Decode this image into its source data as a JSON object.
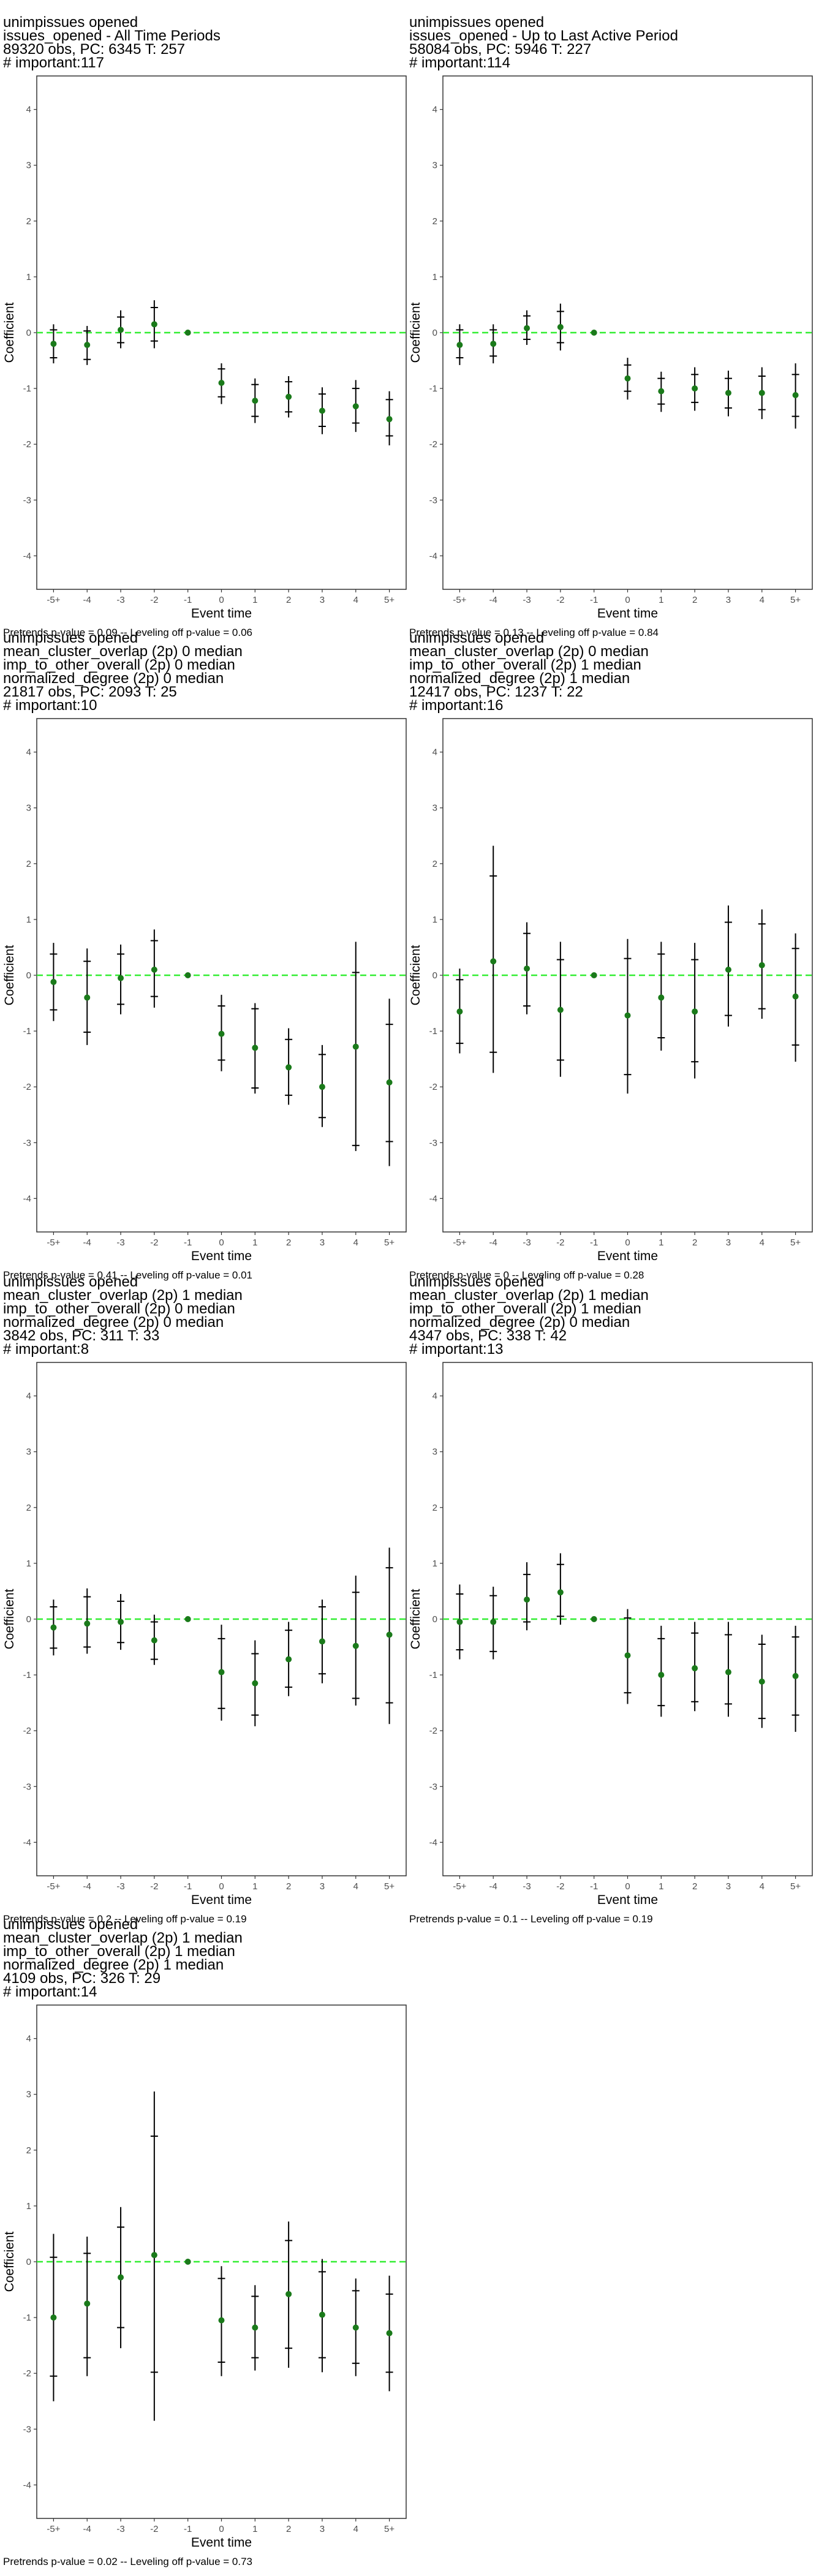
{
  "common": {
    "ylabel": "Coefficient",
    "xlabel": "Event time",
    "categories": [
      "-5+",
      "-4",
      "-3",
      "-2",
      "-1",
      "0",
      "1",
      "2",
      "3",
      "4",
      "5+"
    ],
    "y_ticks": [
      -4,
      -3,
      -2,
      -1,
      0,
      1,
      2,
      3,
      4
    ],
    "ylim": [
      -4.6,
      4.6
    ],
    "colors": {
      "point": "#1a7a1a",
      "zero_line": "#33ee33",
      "error_bar": "#000000",
      "frame": "#333333"
    }
  },
  "chart_data": [
    {
      "type": "scatter",
      "title_lines": [
        " unimpissues opened",
        "issues_opened - All Time Periods",
        "89320 obs, PC: 6345 T: 257",
        "# important:117"
      ],
      "footnote": "Pretrends p-value = 0.09 -- Leveling off p-value = 0.06",
      "series": [
        {
          "values": [
            -0.2,
            -0.22,
            0.05,
            0.15,
            0.0,
            -0.9,
            -1.22,
            -1.15,
            -1.4,
            -1.32,
            -1.55
          ],
          "ci95": [
            [
              -0.55,
              0.15
            ],
            [
              -0.58,
              0.12
            ],
            [
              -0.28,
              0.4
            ],
            [
              -0.28,
              0.58
            ],
            [
              0,
              0
            ],
            [
              -1.28,
              -0.55
            ],
            [
              -1.62,
              -0.82
            ],
            [
              -1.52,
              -0.78
            ],
            [
              -1.82,
              -0.98
            ],
            [
              -1.78,
              -0.85
            ],
            [
              -2.02,
              -1.05
            ]
          ],
          "ci90": [
            [
              -0.45,
              0.05
            ],
            [
              -0.48,
              0.03
            ],
            [
              -0.18,
              0.28
            ],
            [
              -0.15,
              0.45
            ],
            [
              0,
              0
            ],
            [
              -1.15,
              -0.65
            ],
            [
              -1.5,
              -0.93
            ],
            [
              -1.42,
              -0.88
            ],
            [
              -1.68,
              -1.1
            ],
            [
              -1.62,
              -1.0
            ],
            [
              -1.85,
              -1.2
            ]
          ]
        }
      ]
    },
    {
      "type": "scatter",
      "title_lines": [
        " unimpissues opened",
        "issues_opened - Up to Last Active Period",
        "58084 obs, PC: 5946 T: 227",
        "# important:114"
      ],
      "footnote": "Pretrends p-value = 0.13 -- Leveling off p-value = 0.84",
      "series": [
        {
          "values": [
            -0.22,
            -0.2,
            0.08,
            0.1,
            0.0,
            -0.82,
            -1.05,
            -1.0,
            -1.08,
            -1.08,
            -1.12
          ],
          "ci95": [
            [
              -0.58,
              0.15
            ],
            [
              -0.55,
              0.15
            ],
            [
              -0.22,
              0.4
            ],
            [
              -0.32,
              0.52
            ],
            [
              0,
              0
            ],
            [
              -1.2,
              -0.45
            ],
            [
              -1.42,
              -0.7
            ],
            [
              -1.4,
              -0.62
            ],
            [
              -1.5,
              -0.68
            ],
            [
              -1.55,
              -0.62
            ],
            [
              -1.72,
              -0.55
            ]
          ],
          "ci90": [
            [
              -0.45,
              0.05
            ],
            [
              -0.42,
              0.05
            ],
            [
              -0.12,
              0.3
            ],
            [
              -0.18,
              0.38
            ],
            [
              0,
              0
            ],
            [
              -1.05,
              -0.58
            ],
            [
              -1.28,
              -0.82
            ],
            [
              -1.25,
              -0.75
            ],
            [
              -1.35,
              -0.82
            ],
            [
              -1.38,
              -0.78
            ],
            [
              -1.5,
              -0.75
            ]
          ]
        }
      ]
    },
    {
      "type": "scatter",
      "title_lines": [
        " unimpissues opened",
        "mean_cluster_overlap (2p) 0 median",
        "imp_to_other_overall (2p) 0 median",
        "normalized_degree (2p) 0 median",
        "21817 obs, PC: 2093 T: 25",
        "# important:10"
      ],
      "footnote": "Pretrends p-value = 0.41 -- Leveling off p-value = 0.01",
      "series": [
        {
          "values": [
            -0.12,
            -0.4,
            -0.05,
            0.1,
            0.0,
            -1.05,
            -1.3,
            -1.65,
            -2.0,
            -1.28,
            -1.92
          ],
          "ci95": [
            [
              -0.82,
              0.58
            ],
            [
              -1.25,
              0.48
            ],
            [
              -0.7,
              0.55
            ],
            [
              -0.58,
              0.82
            ],
            [
              0,
              0
            ],
            [
              -1.72,
              -0.35
            ],
            [
              -2.12,
              -0.5
            ],
            [
              -2.32,
              -0.95
            ],
            [
              -2.72,
              -1.25
            ],
            [
              -3.15,
              0.6
            ],
            [
              -3.42,
              -0.42
            ]
          ],
          "ci90": [
            [
              -0.62,
              0.38
            ],
            [
              -1.02,
              0.25
            ],
            [
              -0.52,
              0.38
            ],
            [
              -0.38,
              0.62
            ],
            [
              0,
              0
            ],
            [
              -1.52,
              -0.55
            ],
            [
              -2.02,
              -0.6
            ],
            [
              -2.15,
              -1.15
            ],
            [
              -2.55,
              -1.42
            ],
            [
              -3.05,
              0.05
            ],
            [
              -2.98,
              -0.88
            ]
          ]
        }
      ]
    },
    {
      "type": "scatter",
      "title_lines": [
        " unimpissues opened",
        "mean_cluster_overlap (2p) 0 median",
        "imp_to_other_overall (2p) 1 median",
        "normalized_degree (2p) 1 median",
        "12417 obs, PC: 1237 T: 22",
        "# important:16"
      ],
      "footnote": "Pretrends p-value = 0 -- Leveling off p-value = 0.28",
      "series": [
        {
          "values": [
            -0.65,
            0.25,
            0.12,
            -0.62,
            0.0,
            -0.72,
            -0.4,
            -0.65,
            0.1,
            0.18,
            -0.38
          ],
          "ci95": [
            [
              -1.4,
              0.12
            ],
            [
              -1.75,
              2.32
            ],
            [
              -0.7,
              0.95
            ],
            [
              -1.82,
              0.6
            ],
            [
              0,
              0
            ],
            [
              -2.12,
              0.65
            ],
            [
              -1.35,
              0.6
            ],
            [
              -1.85,
              0.58
            ],
            [
              -0.92,
              1.25
            ],
            [
              -0.78,
              1.18
            ],
            [
              -1.55,
              0.75
            ]
          ],
          "ci90": [
            [
              -1.22,
              -0.08
            ],
            [
              -1.38,
              1.78
            ],
            [
              -0.55,
              0.75
            ],
            [
              -1.52,
              0.28
            ],
            [
              0,
              0
            ],
            [
              -1.78,
              0.3
            ],
            [
              -1.12,
              0.38
            ],
            [
              -1.55,
              0.28
            ],
            [
              -0.72,
              0.95
            ],
            [
              -0.6,
              0.92
            ],
            [
              -1.25,
              0.48
            ]
          ]
        }
      ]
    },
    {
      "type": "scatter",
      "title_lines": [
        " unimpissues opened",
        "mean_cluster_overlap (2p) 1 median",
        "imp_to_other_overall (2p) 0 median",
        "normalized_degree (2p) 0 median",
        "3842 obs, PC: 311 T: 33",
        "# important:8"
      ],
      "footnote": "Pretrends p-value = 0.2 -- Leveling off p-value = 0.19",
      "series": [
        {
          "values": [
            -0.15,
            -0.08,
            -0.05,
            -0.38,
            0.0,
            -0.95,
            -1.15,
            -0.72,
            -0.4,
            -0.48,
            -0.28
          ],
          "ci95": [
            [
              -0.65,
              0.35
            ],
            [
              -0.62,
              0.55
            ],
            [
              -0.55,
              0.45
            ],
            [
              -0.82,
              0.08
            ],
            [
              0,
              0
            ],
            [
              -1.82,
              -0.1
            ],
            [
              -1.92,
              -0.38
            ],
            [
              -1.38,
              -0.05
            ],
            [
              -1.15,
              0.35
            ],
            [
              -1.55,
              0.78
            ],
            [
              -1.88,
              1.28
            ]
          ],
          "ci90": [
            [
              -0.52,
              0.22
            ],
            [
              -0.5,
              0.4
            ],
            [
              -0.42,
              0.32
            ],
            [
              -0.72,
              -0.05
            ],
            [
              0,
              0
            ],
            [
              -1.6,
              -0.35
            ],
            [
              -1.72,
              -0.62
            ],
            [
              -1.22,
              -0.2
            ],
            [
              -0.98,
              0.22
            ],
            [
              -1.42,
              0.48
            ],
            [
              -1.5,
              0.92
            ]
          ]
        }
      ]
    },
    {
      "type": "scatter",
      "title_lines": [
        " unimpissues opened",
        "mean_cluster_overlap (2p) 1 median",
        "imp_to_other_overall (2p) 1 median",
        "normalized_degree (2p) 0 median",
        "4347 obs, PC: 338 T: 42",
        "# important:13"
      ],
      "footnote": "Pretrends p-value = 0.1 -- Leveling off p-value = 0.19",
      "series": [
        {
          "values": [
            -0.05,
            -0.05,
            0.35,
            0.48,
            0.0,
            -0.65,
            -1.0,
            -0.88,
            -0.95,
            -1.12,
            -1.02
          ],
          "ci95": [
            [
              -0.72,
              0.62
            ],
            [
              -0.72,
              0.58
            ],
            [
              -0.2,
              1.02
            ],
            [
              -0.1,
              1.18
            ],
            [
              0,
              0
            ],
            [
              -1.52,
              0.18
            ],
            [
              -1.75,
              -0.12
            ],
            [
              -1.65,
              -0.05
            ],
            [
              -1.75,
              -0.05
            ],
            [
              -1.95,
              -0.28
            ],
            [
              -2.02,
              -0.12
            ]
          ],
          "ci90": [
            [
              -0.55,
              0.45
            ],
            [
              -0.58,
              0.42
            ],
            [
              -0.05,
              0.8
            ],
            [
              0.05,
              0.98
            ],
            [
              0,
              0
            ],
            [
              -1.32,
              0.02
            ],
            [
              -1.55,
              -0.35
            ],
            [
              -1.48,
              -0.25
            ],
            [
              -1.52,
              -0.28
            ],
            [
              -1.78,
              -0.45
            ],
            [
              -1.72,
              -0.32
            ]
          ]
        }
      ]
    },
    {
      "type": "scatter",
      "title_lines": [
        " unimpissues opened",
        "mean_cluster_overlap (2p) 1 median",
        "imp_to_other_overall (2p) 1 median",
        "normalized_degree (2p) 1 median",
        "4109 obs, PC: 326 T: 29",
        "# important:14"
      ],
      "footnote": "Pretrends p-value = 0.02 -- Leveling off p-value = 0.73",
      "series": [
        {
          "values": [
            -1.0,
            -0.75,
            -0.28,
            0.12,
            0.0,
            -1.05,
            -1.18,
            -0.58,
            -0.95,
            -1.18,
            -1.28
          ],
          "ci95": [
            [
              -2.5,
              0.5
            ],
            [
              -2.05,
              0.45
            ],
            [
              -1.55,
              0.98
            ],
            [
              -2.85,
              3.05
            ],
            [
              0,
              0
            ],
            [
              -2.05,
              -0.08
            ],
            [
              -1.95,
              -0.42
            ],
            [
              -1.9,
              0.72
            ],
            [
              -1.98,
              0.05
            ],
            [
              -2.05,
              -0.3
            ],
            [
              -2.32,
              -0.25
            ]
          ],
          "ci90": [
            [
              -2.05,
              0.08
            ],
            [
              -1.72,
              0.15
            ],
            [
              -1.18,
              0.62
            ],
            [
              -1.98,
              2.25
            ],
            [
              0,
              0
            ],
            [
              -1.8,
              -0.3
            ],
            [
              -1.72,
              -0.62
            ],
            [
              -1.55,
              0.38
            ],
            [
              -1.72,
              -0.18
            ],
            [
              -1.82,
              -0.52
            ],
            [
              -1.98,
              -0.58
            ]
          ]
        }
      ]
    }
  ]
}
